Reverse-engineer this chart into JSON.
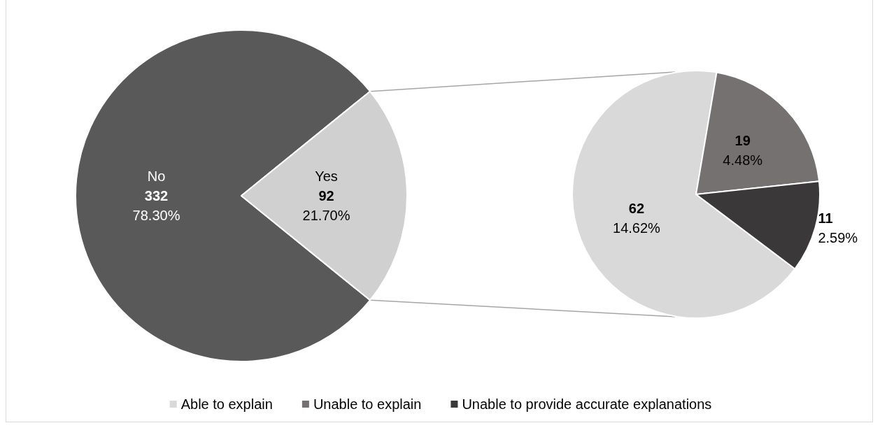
{
  "chart_data": [
    {
      "type": "pie",
      "categories": [
        "No",
        "Yes"
      ],
      "values": [
        332,
        92
      ],
      "colors": [
        "#595959",
        "#d0d0d0"
      ],
      "value_labels": [
        "332\n78.30%",
        "92\n21.70%"
      ]
    },
    {
      "type": "pie",
      "categories": [
        "Able to explain",
        "Unable to explain",
        "Unable to provide accurate explanations"
      ],
      "values": [
        62,
        19,
        11
      ],
      "colors": [
        "#d9d9d9",
        "#767171",
        "#3a3838"
      ],
      "value_labels": [
        "62\n14.62%",
        "19\n4.48%",
        "11\n2.59%"
      ],
      "legend": "bottom"
    }
  ]
}
